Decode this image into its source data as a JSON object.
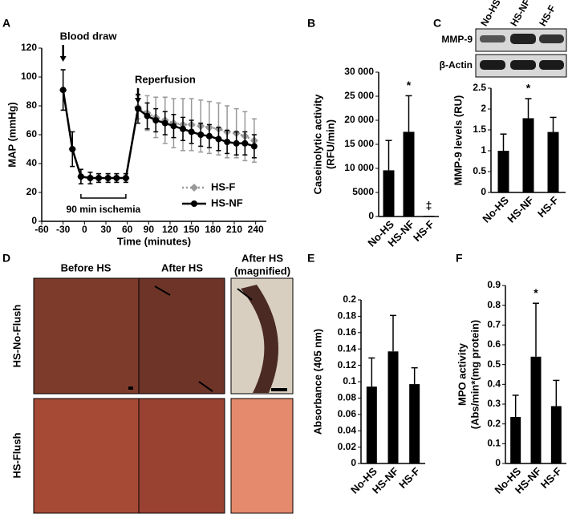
{
  "chart_data": [
    {
      "type": "line",
      "panel_label": "A",
      "ylabel": "MAP (mmHg)",
      "xlabel": "Time (minutes)",
      "x": [
        -30,
        -17,
        -5,
        8,
        20,
        33,
        45,
        58,
        75,
        88,
        100,
        113,
        125,
        138,
        150,
        163,
        175,
        188,
        200,
        213,
        225,
        238
      ],
      "series": [
        {
          "name": "HS-F",
          "color": "#999999",
          "linestyle": "dotted",
          "marker": "diamond",
          "values": [
            91,
            50,
            31,
            30,
            30,
            30,
            30,
            30,
            79,
            75,
            72,
            70,
            68,
            67,
            67,
            66,
            65,
            64,
            62,
            61,
            59,
            56
          ],
          "errors": [
            14,
            12,
            5,
            4,
            3,
            3,
            3,
            3,
            8,
            12,
            14,
            16,
            17,
            18,
            18,
            18,
            18,
            18,
            18,
            17,
            17,
            15
          ]
        },
        {
          "name": "HS-NF",
          "color": "#000000",
          "linestyle": "solid",
          "marker": "circle",
          "values": [
            91,
            50,
            31,
            30,
            30,
            30,
            30,
            30,
            78,
            73,
            70,
            68,
            66,
            64,
            62,
            60,
            59,
            57,
            55,
            54,
            54,
            52
          ],
          "errors": [
            14,
            12,
            5,
            4,
            3,
            3,
            3,
            3,
            10,
            9,
            8,
            8,
            8,
            8,
            8,
            8,
            8,
            8,
            8,
            8,
            8,
            8
          ]
        }
      ],
      "xlim": [
        -60,
        255
      ],
      "xticks": [
        -60,
        -30,
        0,
        30,
        60,
        90,
        120,
        150,
        180,
        210,
        240
      ],
      "ylim": [
        0,
        120
      ],
      "yticks": [
        0,
        20,
        40,
        60,
        80,
        100,
        120
      ],
      "legend": "lower right",
      "annotations": [
        "Blood draw",
        "Reperfusion",
        "90 min ischemia"
      ]
    },
    {
      "type": "bar",
      "panel_label": "B",
      "ylabel": [
        "Caseinolytic activity",
        "(RFU/min)"
      ],
      "categories": [
        "No-HS",
        "HS-NF",
        "HS-F"
      ],
      "values": [
        9600,
        17600,
        150
      ],
      "errors": [
        6200,
        7500,
        0
      ],
      "significance": [
        null,
        "*",
        "‡"
      ],
      "color": "#000000",
      "ylim": [
        0,
        30000
      ],
      "yticks": [
        0,
        5000,
        {
          "value": 10000,
          "label": "10 000"
        },
        {
          "value": 15000,
          "label": "15 000"
        },
        {
          "value": 20000,
          "label": "20 000"
        },
        {
          "value": 25000,
          "label": "25 000"
        },
        {
          "value": 30000,
          "label": "30 000"
        }
      ]
    },
    {
      "type": "bar",
      "panel_label": "C",
      "ylabel": "MMP-9 levels (RU)",
      "categories": [
        "No-HS",
        "HS-NF",
        "HS-F"
      ],
      "values": [
        1.0,
        1.78,
        1.45
      ],
      "errors": [
        0.4,
        0.47,
        0.35
      ],
      "significance": [
        null,
        "*",
        null
      ],
      "color": "#000000",
      "ylim": [
        0,
        2.5
      ],
      "yticks": [
        0,
        0.5,
        1,
        1.5,
        2,
        2.5
      ]
    },
    {
      "type": "bar",
      "panel_label": "E",
      "ylabel": "Absorbance (405 nm)",
      "categories": [
        "No-HS",
        "HS-NF",
        "HS-F"
      ],
      "values": [
        0.094,
        0.137,
        0.097
      ],
      "errors": [
        0.035,
        0.044,
        0.02
      ],
      "significance": [
        null,
        null,
        null
      ],
      "color": "#000000",
      "ylim": [
        0,
        0.2
      ],
      "yticks": [
        0,
        0.02,
        0.04,
        0.06,
        0.08,
        0.1,
        0.12,
        0.14,
        0.16,
        0.18,
        0.2
      ]
    },
    {
      "type": "bar",
      "panel_label": "F",
      "ylabel": [
        "MPO activity",
        "(Abs/min*(mg protein)"
      ],
      "categories": [
        "No-HS",
        "HS-NF",
        "HS-F"
      ],
      "values": [
        0.235,
        0.54,
        0.29
      ],
      "errors": [
        0.11,
        0.27,
        0.13
      ],
      "significance": [
        null,
        "*",
        null
      ],
      "color": "#000000",
      "ylim": [
        0,
        0.9
      ],
      "yticks": [
        0,
        0.1,
        0.2,
        0.3,
        0.4,
        0.5,
        0.6,
        0.7,
        0.8,
        0.9
      ]
    }
  ],
  "blot": {
    "lanes": [
      "No-HS",
      "HS-NF",
      "HS-F"
    ],
    "proteins": [
      "MMP-9",
      "β-Actin"
    ]
  },
  "photos": {
    "panel_label": "D",
    "columns": [
      "Before HS",
      "After HS",
      [
        "After HS",
        "(magnified)"
      ]
    ],
    "rows": [
      "HS-No-Flush",
      "HS-Flush"
    ]
  }
}
